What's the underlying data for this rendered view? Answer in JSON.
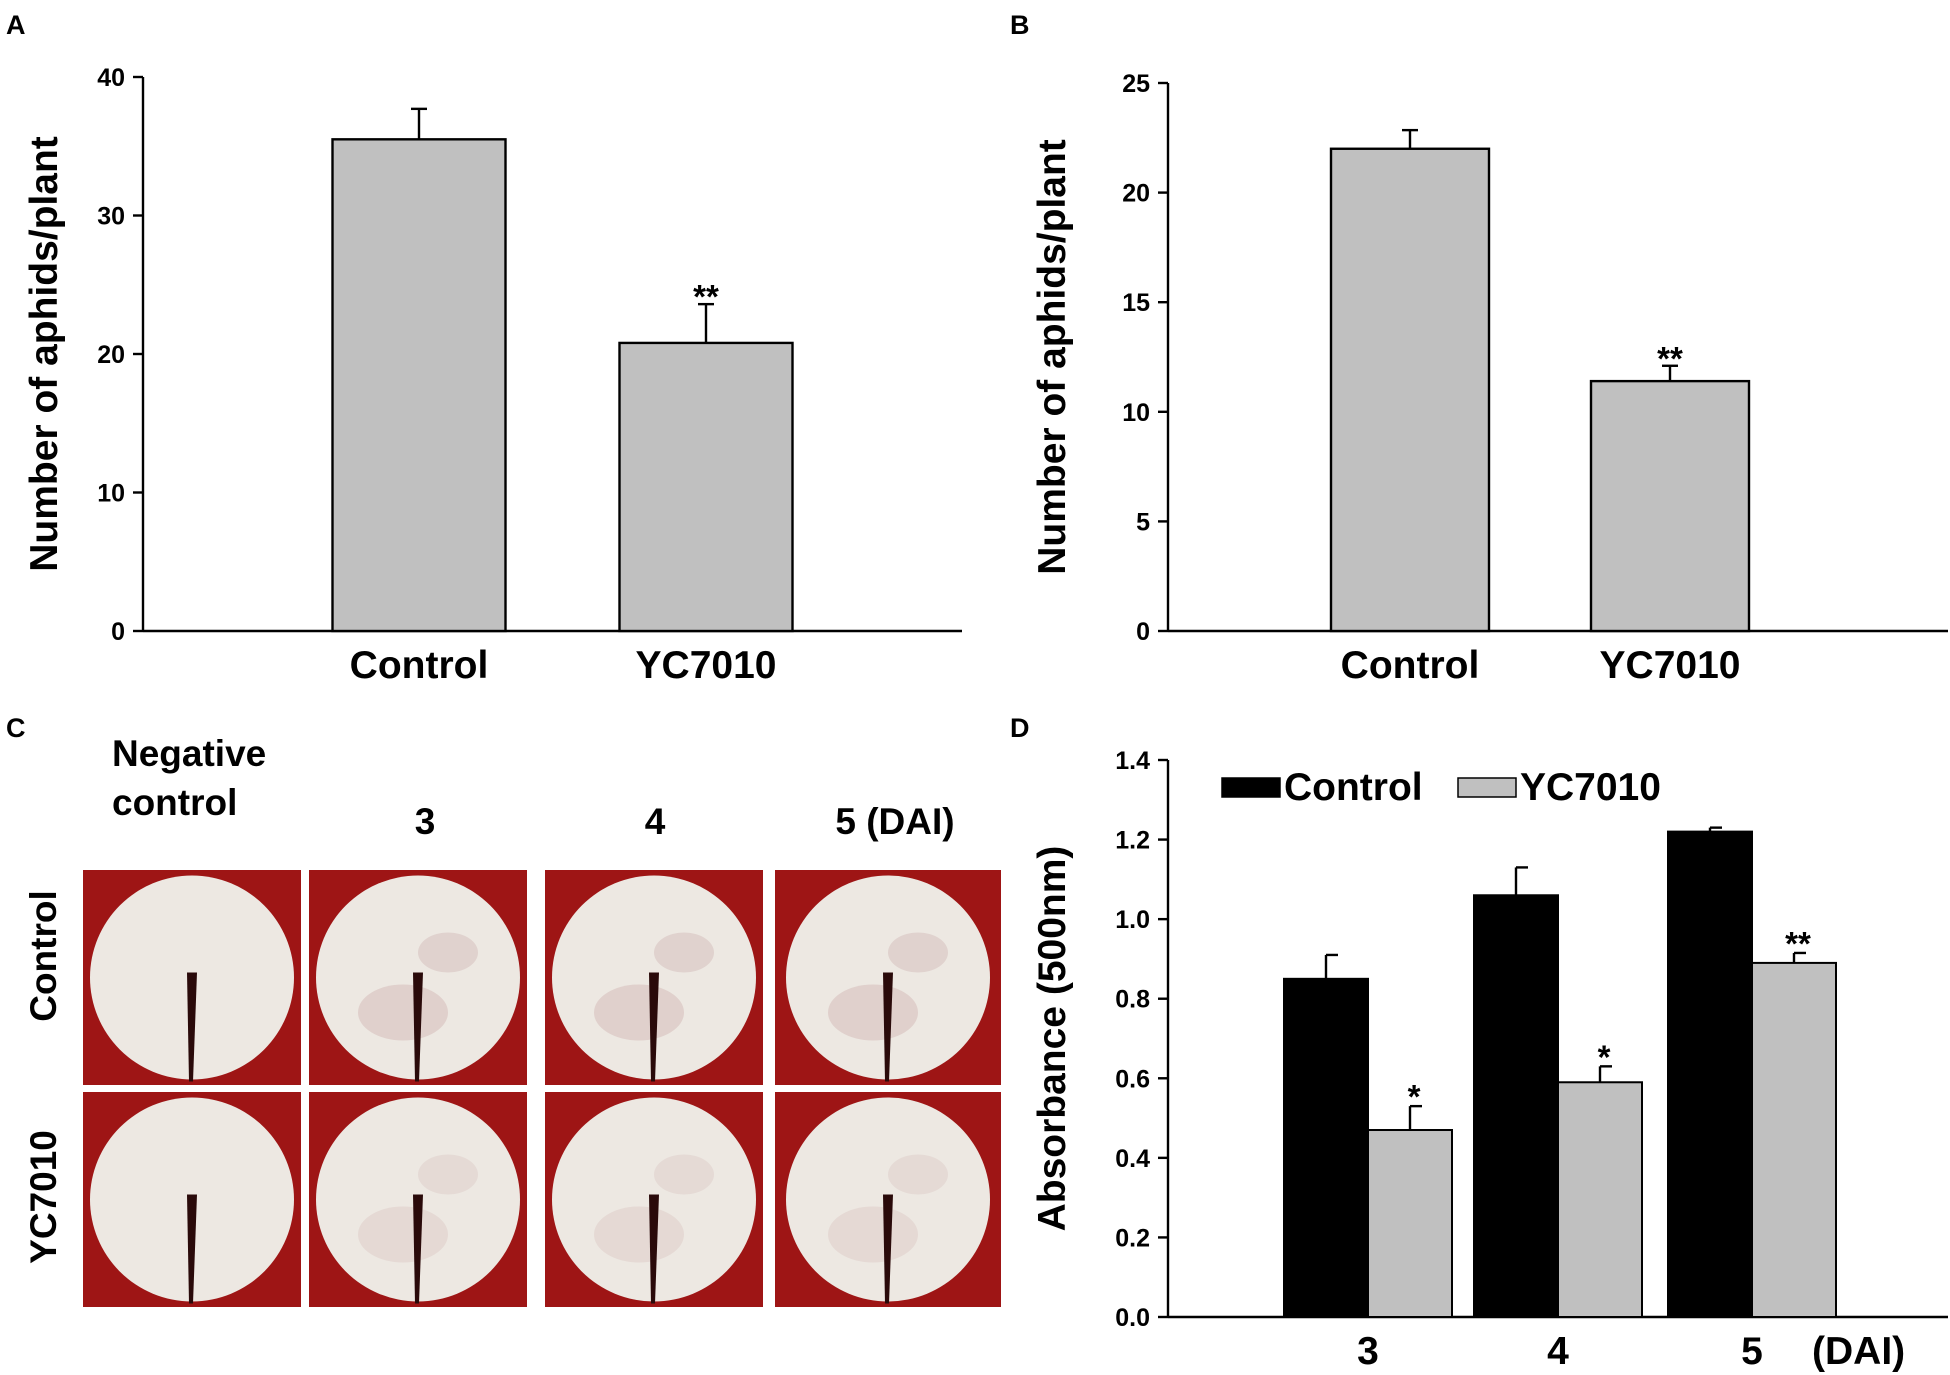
{
  "panels": {
    "a": "A",
    "b": "B",
    "c": "C",
    "d": "D"
  },
  "chart_data": [
    {
      "panel": "A",
      "type": "bar",
      "categories": [
        "Control",
        "YC7010"
      ],
      "values": [
        35.5,
        20.8
      ],
      "errors": [
        2.2,
        2.8
      ],
      "significance": [
        "",
        "**"
      ],
      "ylabel": "Number of aphids/plant",
      "xlabel": "",
      "ylim": [
        0,
        40
      ],
      "yticks": [
        0,
        10,
        20,
        30,
        40
      ],
      "bar_color": "#c0c0c0"
    },
    {
      "panel": "B",
      "type": "bar",
      "categories": [
        "Control",
        "YC7010"
      ],
      "values": [
        22.0,
        11.4
      ],
      "errors": [
        0.85,
        0.7
      ],
      "significance": [
        "",
        "**"
      ],
      "ylabel": "Number of aphids/plant",
      "xlabel": "",
      "ylim": [
        0,
        25
      ],
      "yticks": [
        0,
        5,
        10,
        15,
        20,
        25
      ],
      "bar_color": "#c0c0c0"
    },
    {
      "panel": "D",
      "type": "bar",
      "categories": [
        "3",
        "4",
        "5"
      ],
      "x_unit": "(DAI)",
      "series": [
        {
          "name": "Control",
          "values": [
            0.85,
            1.06,
            1.22
          ],
          "errors": [
            0.06,
            0.07,
            0.01
          ],
          "significance": [
            "",
            "",
            ""
          ],
          "color": "#000000"
        },
        {
          "name": "YC7010",
          "values": [
            0.47,
            0.59,
            0.89
          ],
          "errors": [
            0.06,
            0.04,
            0.025
          ],
          "significance": [
            "*",
            "*",
            "**"
          ],
          "color": "#c0c0c0"
        }
      ],
      "ylabel": "Absorbance (500nm)",
      "xlabel": "",
      "ylim": [
        0,
        1.4
      ],
      "yticks": [
        "0.0",
        "0.2",
        "0.4",
        "0.6",
        "0.8",
        "1.0",
        "1.2",
        "1.4"
      ],
      "legend_position": "top-left"
    }
  ],
  "photo_panel": {
    "column_headers": [
      "Negative control",
      "3",
      "4",
      "5 (DAI)"
    ],
    "negative_line1": "Negative",
    "negative_line2": "control",
    "row_labels": [
      "Control",
      "YC7010"
    ],
    "background_color": "#9e1515",
    "disc_color": "#ede8e2"
  }
}
